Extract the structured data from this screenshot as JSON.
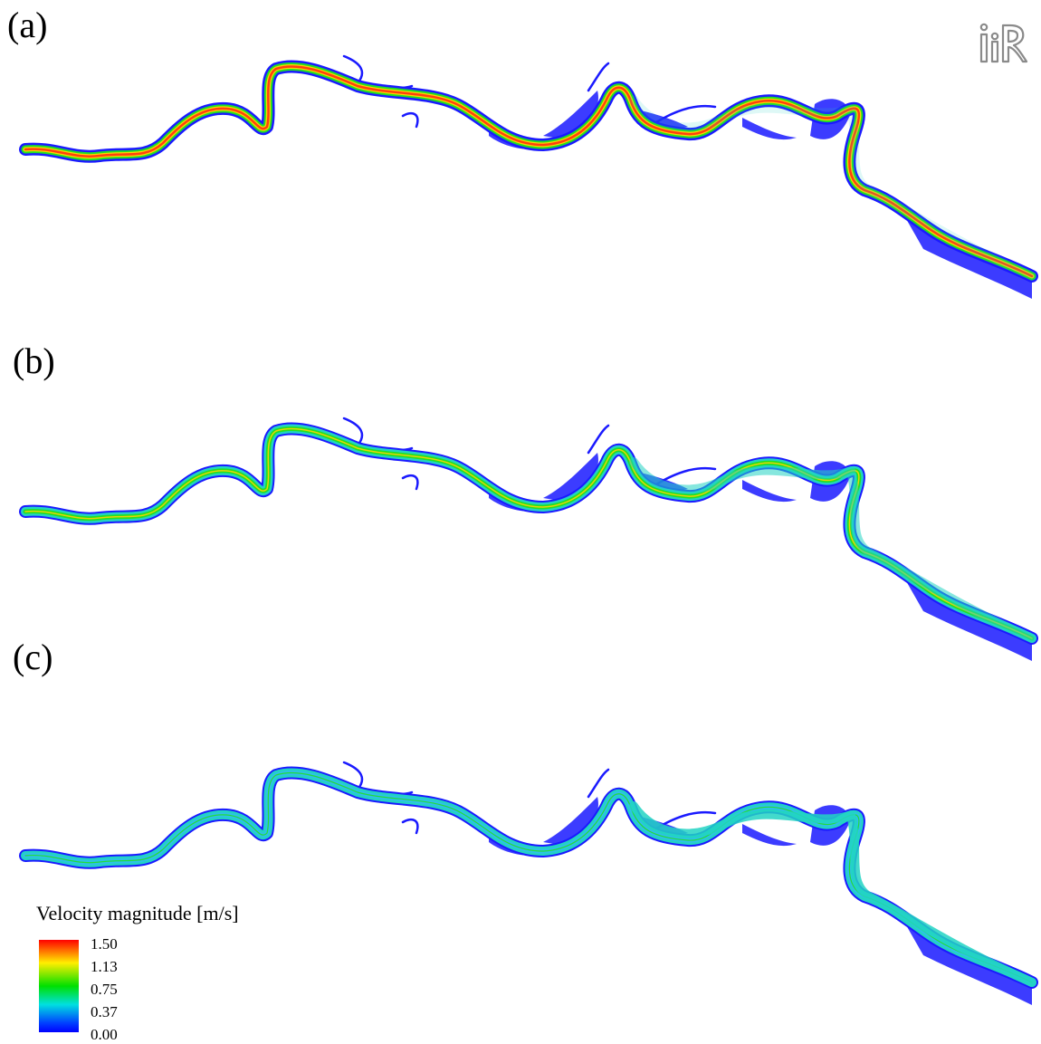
{
  "panels": [
    {
      "label": "(a)",
      "mode": "high"
    },
    {
      "label": "(b)",
      "mode": "mid"
    },
    {
      "label": "(c)",
      "mode": "low"
    }
  ],
  "logo": {
    "name": "iRIC logo"
  },
  "legend": {
    "title": "Velocity magnitude [m/s]",
    "ticks": [
      "1.50",
      "1.13",
      "0.75",
      "0.37",
      "0.00"
    ],
    "colors": [
      "#ff0000",
      "#ffee00",
      "#00e000",
      "#00e0e0",
      "#0000ff"
    ]
  },
  "colors": {
    "bank": "#1a1aff",
    "mid": "#22d3c3",
    "green": "#22e022",
    "red": "#ff3010",
    "yellow": "#ffd400"
  }
}
